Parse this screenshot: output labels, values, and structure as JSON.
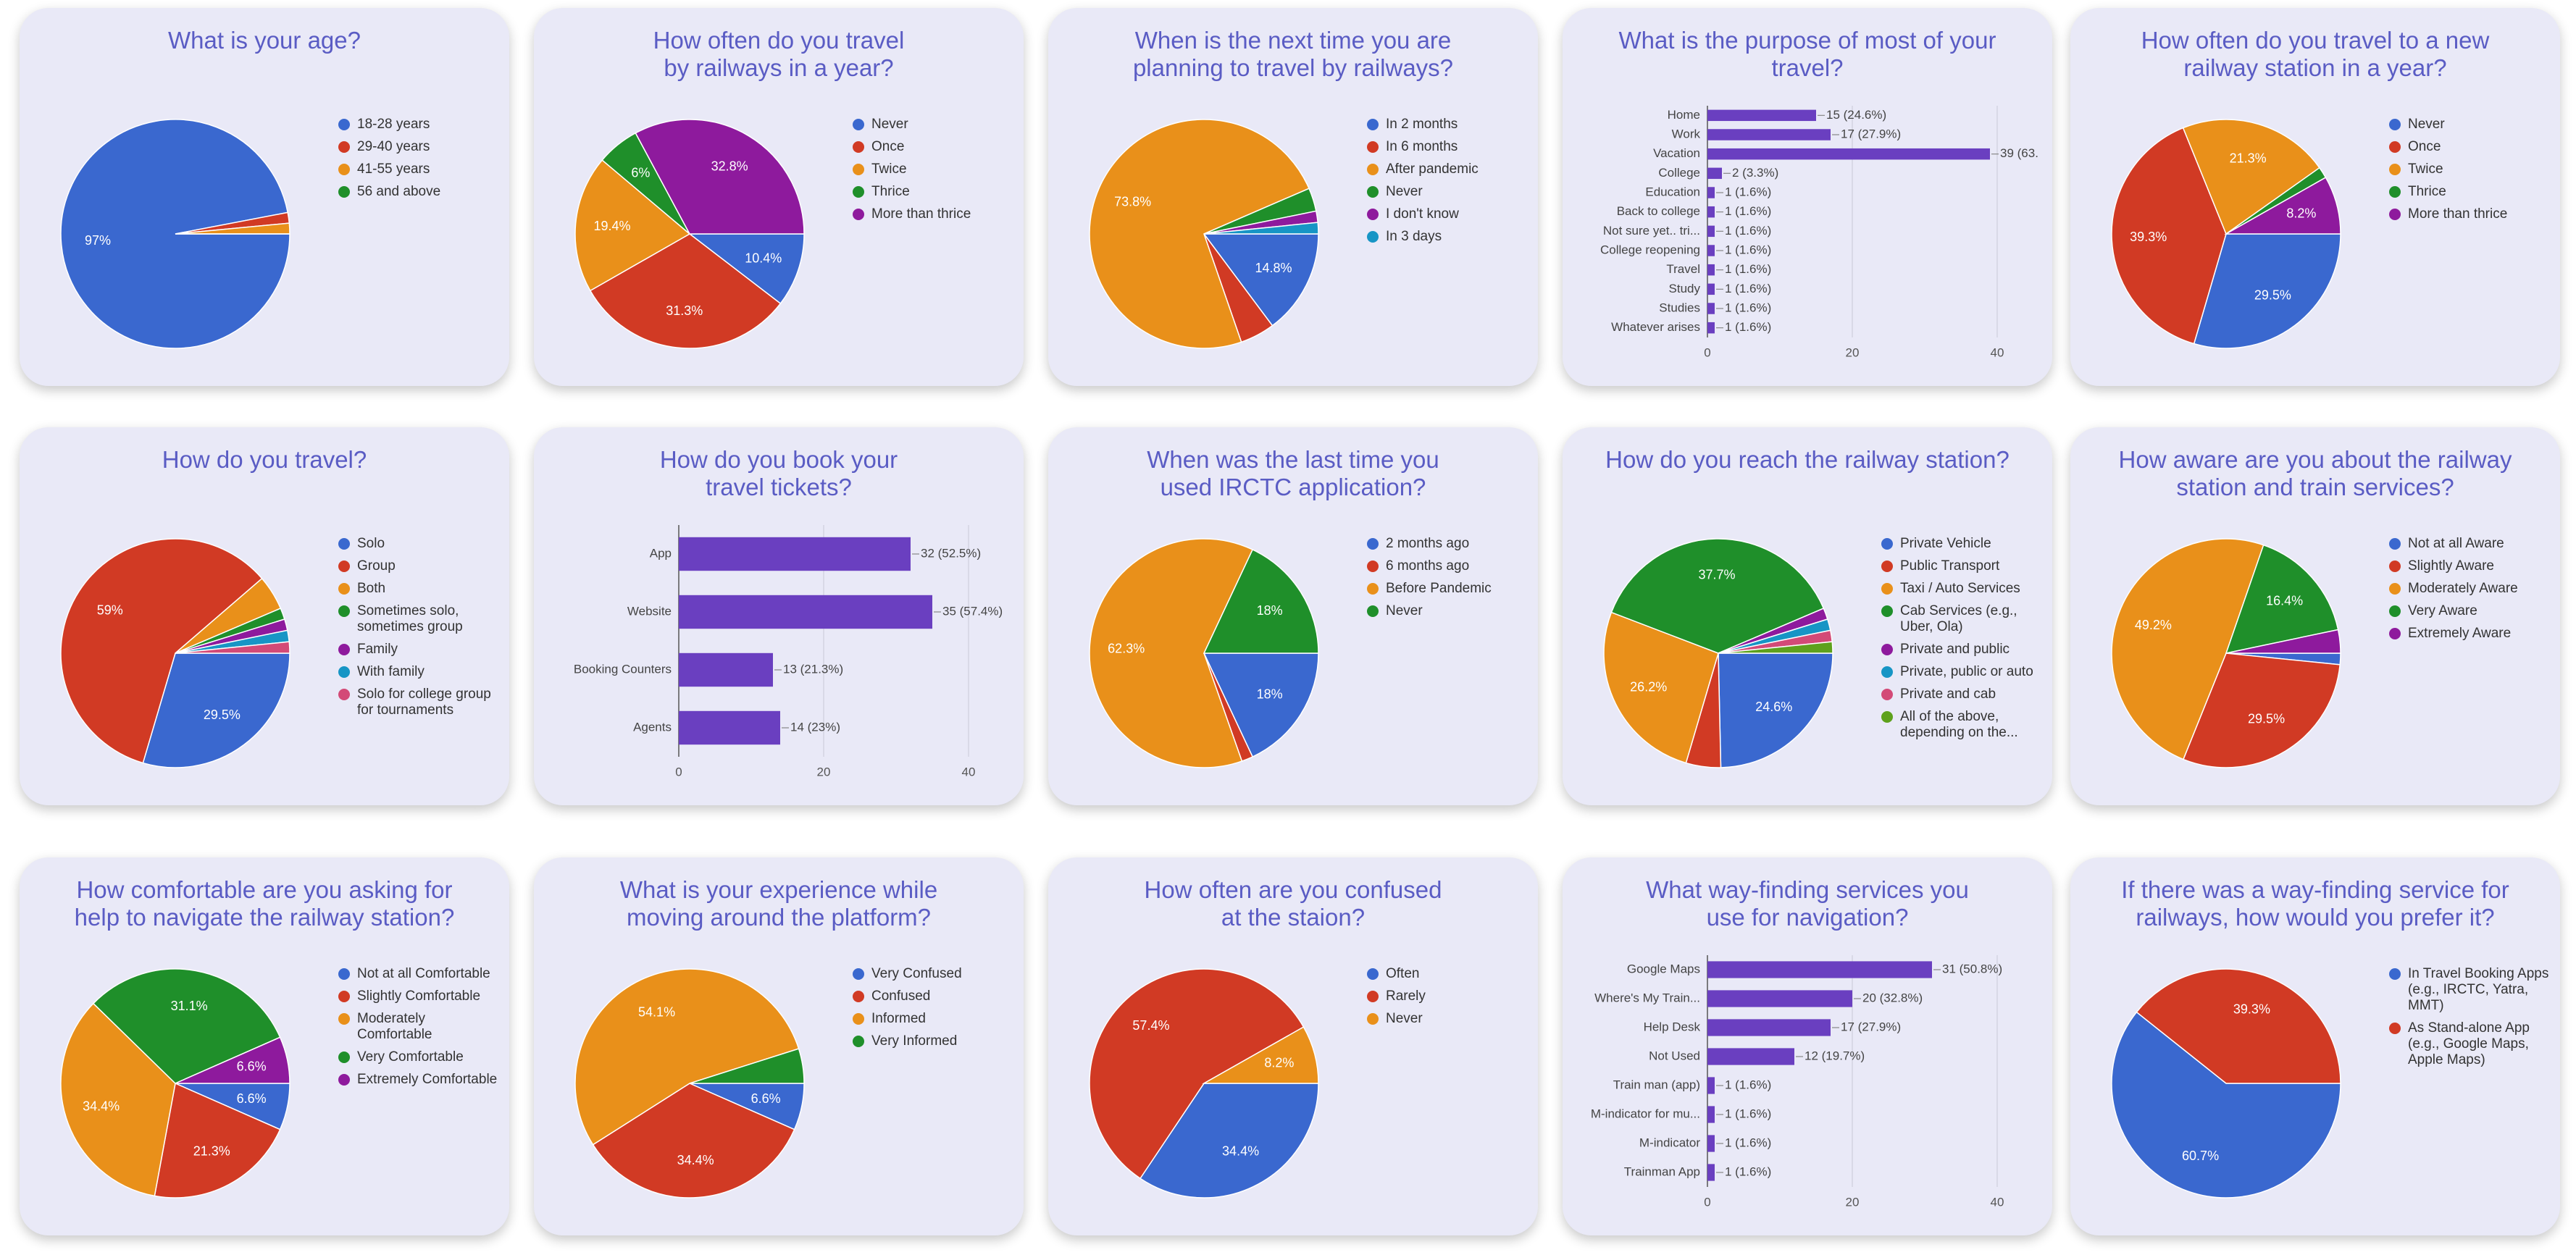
{
  "chart_data": [
    {
      "type": "pie",
      "title": "What is your age?",
      "categories": [
        "18-28 years",
        "29-40 years",
        "41-55 years",
        "56 and above"
      ],
      "values": [
        97,
        1.5,
        1.5,
        0
      ],
      "value_labels": [
        "97%",
        null,
        null,
        null
      ],
      "colors": [
        "#3a68cf",
        "#d13a24",
        "#e9901a",
        "#1f8f2a"
      ]
    },
    {
      "type": "pie",
      "title": "How often do you travel\nby railways in a year?",
      "categories": [
        "Never",
        "Once",
        "Twice",
        "Thrice",
        "More than thrice"
      ],
      "values": [
        10.4,
        31.3,
        19.4,
        6,
        32.8
      ],
      "value_labels": [
        "10.4%",
        "31.3%",
        "19.4%",
        "6%",
        "32.8%"
      ],
      "colors": [
        "#3a68cf",
        "#d13a24",
        "#e9901a",
        "#1f8f2a",
        "#8e1a9d"
      ]
    },
    {
      "type": "pie",
      "title": "When is the next time you are\nplanning to travel by railways?",
      "categories": [
        "In 2 months",
        "In 6 months",
        "After pandemic",
        "Never",
        "I don't know",
        "In 3 days"
      ],
      "values": [
        14.8,
        4.9,
        73.8,
        3.3,
        1.6,
        1.6
      ],
      "value_labels": [
        "14.8%",
        null,
        "73.8%",
        null,
        null,
        null
      ],
      "colors": [
        "#3a68cf",
        "#d13a24",
        "#e9901a",
        "#1f8f2a",
        "#8e1a9d",
        "#1795c5"
      ]
    },
    {
      "type": "bar",
      "title": "What is the purpose of most of your\ntravel?",
      "categories": [
        "Home",
        "Work",
        "Vacation",
        "College",
        "Education",
        "Back to college",
        "Not sure yet.. tri...",
        "College reopening",
        "Travel",
        "Study",
        "Studies",
        "Whatever arises"
      ],
      "values": [
        15,
        17,
        39,
        2,
        1,
        1,
        1,
        1,
        1,
        1,
        1,
        1
      ],
      "value_labels": [
        "15 (24.6%)",
        "17 (27.9%)",
        "39 (63.",
        "2 (3.3%)",
        "1 (1.6%)",
        "1 (1.6%)",
        "1 (1.6%)",
        "1 (1.6%)",
        "1 (1.6%)",
        "1 (1.6%)",
        "1 (1.6%)",
        "1 (1.6%)"
      ],
      "color": "#6a3fc0",
      "xlim": [
        0,
        40
      ],
      "xticks": [
        0,
        20,
        40
      ]
    },
    {
      "type": "pie",
      "title": "How often do you travel to a new\nrailway station in a year?",
      "categories": [
        "Never",
        "Once",
        "Twice",
        "Thrice",
        "More than thrice"
      ],
      "values": [
        29.5,
        39.3,
        21.3,
        1.6,
        8.2
      ],
      "value_labels": [
        "29.5%",
        "39.3%",
        "21.3%",
        null,
        "8.2%"
      ],
      "colors": [
        "#3a68cf",
        "#d13a24",
        "#e9901a",
        "#1f8f2a",
        "#8e1a9d"
      ]
    },
    {
      "type": "pie",
      "title": "How do you travel?",
      "categories": [
        "Solo",
        "Group",
        "Both",
        "Sometimes solo, sometimes group",
        "Family",
        "With family",
        "Solo for college group for tournaments"
      ],
      "values": [
        29.5,
        59,
        4.9,
        1.6,
        1.6,
        1.6,
        1.6
      ],
      "value_labels": [
        "29.5%",
        "59%",
        null,
        null,
        null,
        null,
        null
      ],
      "colors": [
        "#3a68cf",
        "#d13a24",
        "#e9901a",
        "#1f8f2a",
        "#8e1a9d",
        "#1795c5",
        "#d34a77"
      ]
    },
    {
      "type": "bar",
      "title": "How do you book your\ntravel tickets?",
      "categories": [
        "App",
        "Website",
        "Booking Counters",
        "Agents"
      ],
      "values": [
        32,
        35,
        13,
        14
      ],
      "value_labels": [
        "32 (52.5%)",
        "35 (57.4%)",
        "13 (21.3%)",
        "14 (23%)"
      ],
      "color": "#6a3fc0",
      "xlim": [
        0,
        40
      ],
      "xticks": [
        0,
        20,
        40
      ]
    },
    {
      "type": "pie",
      "title": "When was the last time you\nused IRCTC application?",
      "categories": [
        "2 months ago",
        "6 months ago",
        "Before Pandemic",
        "Never"
      ],
      "values": [
        18,
        1.6,
        62.3,
        18
      ],
      "value_labels": [
        "18%",
        null,
        "62.3%",
        "18%"
      ],
      "colors": [
        "#3a68cf",
        "#d13a24",
        "#e9901a",
        "#1f8f2a"
      ]
    },
    {
      "type": "pie",
      "title": "How do you reach the railway station?",
      "categories": [
        "Private Vehicle",
        "Public Transport",
        "Taxi / Auto Services",
        "Cab Services (e.g., Uber, Ola)",
        "Private and public",
        "Private, public or auto",
        "Private and cab",
        "All of the above, depending on the..."
      ],
      "values": [
        24.6,
        4.9,
        26.2,
        37.7,
        1.6,
        1.6,
        1.6,
        1.6
      ],
      "value_labels": [
        "24.6%",
        null,
        "26.2%",
        "37.7%",
        null,
        null,
        null,
        null
      ],
      "colors": [
        "#3a68cf",
        "#d13a24",
        "#e9901a",
        "#1f8f2a",
        "#8e1a9d",
        "#1795c5",
        "#d34a77",
        "#5ea11d"
      ]
    },
    {
      "type": "pie",
      "title": "How aware are you about the railway\nstation and train services?",
      "categories": [
        "Not at all Aware",
        "Slightly Aware",
        "Moderately Aware",
        "Very Aware",
        "Extremely Aware"
      ],
      "values": [
        1.6,
        29.5,
        49.2,
        16.4,
        3.3
      ],
      "value_labels": [
        null,
        "29.5%",
        "49.2%",
        "16.4%",
        null
      ],
      "colors": [
        "#3a68cf",
        "#d13a24",
        "#e9901a",
        "#1f8f2a",
        "#8e1a9d"
      ]
    },
    {
      "type": "pie",
      "title": "How comfortable are you asking for\nhelp to navigate the railway station?",
      "categories": [
        "Not at all Comfortable",
        "Slightly Comfortable",
        "Moderately Comfortable",
        "Very Comfortable",
        "Extremely Comfortable"
      ],
      "values": [
        6.6,
        21.3,
        34.4,
        31.1,
        6.6
      ],
      "value_labels": [
        "6.6%",
        "21.3%",
        "34.4%",
        "31.1%",
        "6.6%"
      ],
      "colors": [
        "#3a68cf",
        "#d13a24",
        "#e9901a",
        "#1f8f2a",
        "#8e1a9d"
      ]
    },
    {
      "type": "pie",
      "title": "What is your experience while\nmoving around the platform?",
      "categories": [
        "Very Confused",
        "Confused",
        "Informed",
        "Very Informed"
      ],
      "values": [
        6.6,
        34.4,
        54.1,
        4.9
      ],
      "value_labels": [
        "6.6%",
        "34.4%",
        "54.1%",
        null
      ],
      "colors": [
        "#3a68cf",
        "#d13a24",
        "#e9901a",
        "#1f8f2a"
      ]
    },
    {
      "type": "pie",
      "title": "How often are you confused\nat the staion?",
      "categories": [
        "Often",
        "Rarely",
        "Never"
      ],
      "values": [
        34.4,
        57.4,
        8.2
      ],
      "value_labels": [
        "34.4%",
        "57.4%",
        "8.2%"
      ],
      "colors": [
        "#3a68cf",
        "#d13a24",
        "#e9901a"
      ]
    },
    {
      "type": "bar",
      "title": "What way-finding services you\nuse for navigation?",
      "categories": [
        "Google Maps",
        "Where's My Train...",
        "Help Desk",
        "Not Used",
        "Train man (app)",
        "M-indicator for mu...",
        "M-indicator",
        "Trainman App"
      ],
      "values": [
        31,
        20,
        17,
        12,
        1,
        1,
        1,
        1
      ],
      "value_labels": [
        "31 (50.8%)",
        "20 (32.8%)",
        "17 (27.9%)",
        "12 (19.7%)",
        "1 (1.6%)",
        "1 (1.6%)",
        "1 (1.6%)",
        "1 (1.6%)"
      ],
      "color": "#6a3fc0",
      "xlim": [
        0,
        40
      ],
      "xticks": [
        0,
        20,
        40
      ]
    },
    {
      "type": "pie",
      "title": "If there was a way-finding service for\nrailways, how would you prefer it?",
      "categories": [
        "In Travel Booking Apps (e.g., IRCTC, Yatra, MMT)",
        "As Stand-alone App (e.g., Google Maps, Apple Maps)"
      ],
      "values": [
        60.7,
        39.3
      ],
      "value_labels": [
        "60.7%",
        "39.3%"
      ],
      "colors": [
        "#3a68cf",
        "#d13a24"
      ]
    }
  ]
}
